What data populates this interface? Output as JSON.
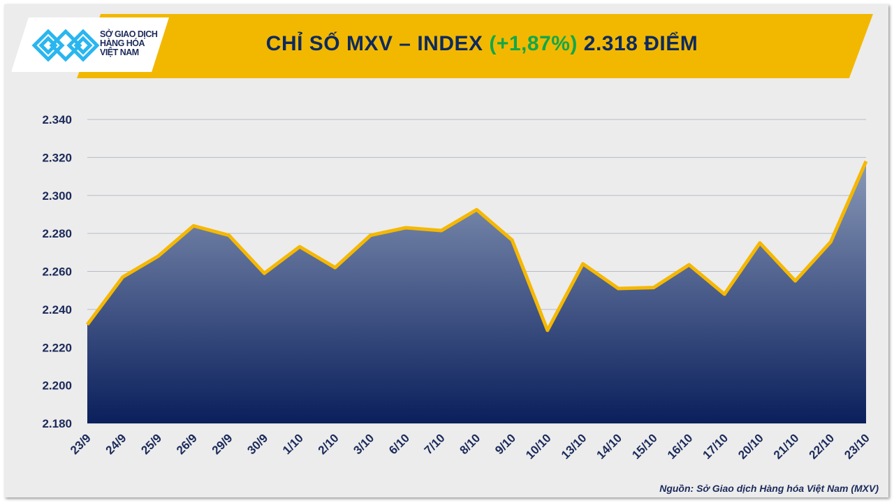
{
  "header": {
    "title_prefix": "CHỈ SỐ MXV – INDEX",
    "title_change": "(+1,87%)",
    "title_suffix": "2.318 ĐIỂM",
    "logo_lines": [
      "SỞ GIAO DỊCH",
      "HÀNG HÓA",
      "VIỆT NAM"
    ]
  },
  "source": "Nguồn: Sở Giao dịch Hàng hóa Việt Nam (MXV)",
  "colors": {
    "banner": "#f2b800",
    "line": "#f5b800",
    "fill_top": "#8a99b8",
    "fill_bottom": "#0a1f5c",
    "positive": "#11a84a",
    "text": "#0d2a5e"
  },
  "chart_data": {
    "type": "area",
    "title": "CHỈ SỐ MXV – INDEX (+1,87%) 2.318 ĐIỂM",
    "categories": [
      "23/9",
      "24/9",
      "25/9",
      "26/9",
      "29/9",
      "30/9",
      "1/10",
      "2/10",
      "3/10",
      "6/10",
      "7/10",
      "8/10",
      "9/10",
      "10/10",
      "13/10",
      "14/10",
      "15/10",
      "16/10",
      "17/10",
      "20/10",
      "21/10",
      "22/10",
      "23/10"
    ],
    "values": [
      2232,
      2257,
      2268,
      2284,
      2279,
      2259,
      2273,
      2262,
      2279,
      2283,
      2281.5,
      2292.5,
      2276.5,
      2229,
      2264,
      2251,
      2251.5,
      2263.5,
      2248,
      2275,
      2255,
      2275.5,
      2318
    ],
    "ylim": [
      2180,
      2340
    ],
    "yticks": [
      "2.180",
      "2.200",
      "2.220",
      "2.240",
      "2.260",
      "2.280",
      "2.300",
      "2.320",
      "2.340"
    ],
    "grid": true,
    "legend": "none"
  }
}
